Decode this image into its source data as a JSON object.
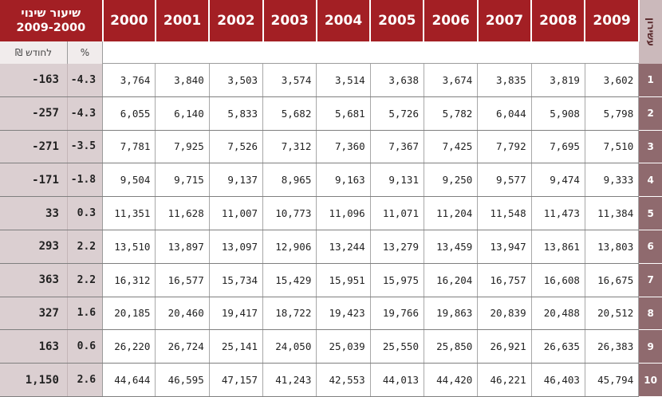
{
  "header": {
    "change_title": "שיעור שינוי",
    "change_period": "2009-2000",
    "years": [
      "2000",
      "2001",
      "2002",
      "2003",
      "2004",
      "2005",
      "2006",
      "2007",
      "2008",
      "2009"
    ],
    "decile_label": "עשירון"
  },
  "units": {
    "shekel_per_month": "₪ לחודש",
    "percent": "%"
  },
  "rows": [
    {
      "decile": "1",
      "change": "-163",
      "pct": "-4.3",
      "values": [
        "3,764",
        "3,840",
        "3,503",
        "3,574",
        "3,514",
        "3,638",
        "3,674",
        "3,835",
        "3,819",
        "3,602"
      ]
    },
    {
      "decile": "2",
      "change": "-257",
      "pct": "-4.3",
      "values": [
        "6,055",
        "6,140",
        "5,833",
        "5,682",
        "5,681",
        "5,726",
        "5,782",
        "6,044",
        "5,908",
        "5,798"
      ]
    },
    {
      "decile": "3",
      "change": "-271",
      "pct": "-3.5",
      "values": [
        "7,781",
        "7,925",
        "7,526",
        "7,312",
        "7,360",
        "7,367",
        "7,425",
        "7,792",
        "7,695",
        "7,510"
      ]
    },
    {
      "decile": "4",
      "change": "-171",
      "pct": "-1.8",
      "values": [
        "9,504",
        "9,715",
        "9,137",
        "8,965",
        "9,163",
        "9,131",
        "9,250",
        "9,577",
        "9,474",
        "9,333"
      ]
    },
    {
      "decile": "5",
      "change": "33",
      "pct": "0.3",
      "values": [
        "11,351",
        "11,628",
        "11,007",
        "10,773",
        "11,096",
        "11,071",
        "11,204",
        "11,548",
        "11,473",
        "11,384"
      ]
    },
    {
      "decile": "6",
      "change": "293",
      "pct": "2.2",
      "values": [
        "13,510",
        "13,897",
        "13,097",
        "12,906",
        "13,244",
        "13,279",
        "13,459",
        "13,947",
        "13,861",
        "13,803"
      ]
    },
    {
      "decile": "7",
      "change": "363",
      "pct": "2.2",
      "values": [
        "16,312",
        "16,577",
        "15,734",
        "15,429",
        "15,951",
        "15,975",
        "16,204",
        "16,757",
        "16,608",
        "16,675"
      ]
    },
    {
      "decile": "8",
      "change": "327",
      "pct": "1.6",
      "values": [
        "20,185",
        "20,460",
        "19,417",
        "18,722",
        "19,423",
        "19,766",
        "19,863",
        "20,839",
        "20,488",
        "20,512"
      ]
    },
    {
      "decile": "9",
      "change": "163",
      "pct": "0.6",
      "values": [
        "26,220",
        "26,724",
        "25,141",
        "24,050",
        "25,039",
        "25,550",
        "25,850",
        "26,921",
        "26,635",
        "26,383"
      ]
    },
    {
      "decile": "10",
      "change": "1,150",
      "pct": "2.6",
      "values": [
        "44,644",
        "46,595",
        "47,157",
        "41,243",
        "42,553",
        "44,013",
        "44,420",
        "46,221",
        "46,403",
        "45,794"
      ]
    }
  ],
  "colors": {
    "header_red": "#a31f24",
    "change_bg": "#dbcfd1",
    "decile_bg": "#8f6a6e",
    "decile_header_bg": "#cbb9bb"
  }
}
